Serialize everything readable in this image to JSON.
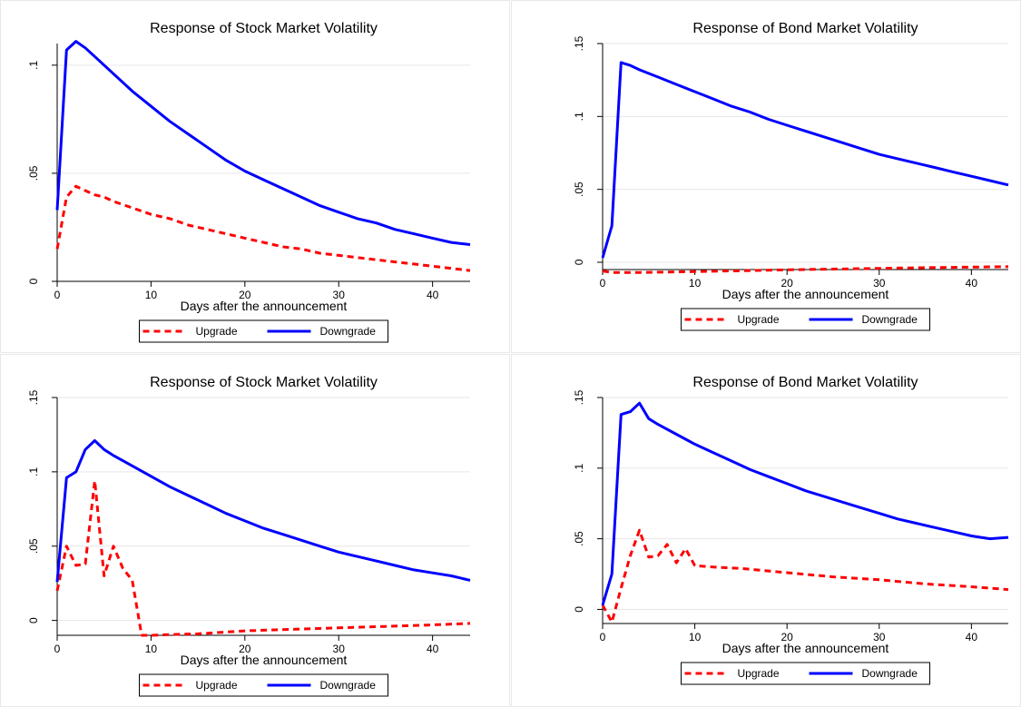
{
  "chart_data": [
    {
      "type": "line",
      "title": "Response of Stock Market Volatility",
      "xlabel": "Days after the announcement",
      "ylabel": "",
      "xlim": [
        0,
        44
      ],
      "ylim": [
        0,
        0.11
      ],
      "xticks": [
        0,
        10,
        20,
        30,
        40
      ],
      "xtick_labels": [
        "0",
        "10",
        "20",
        "30",
        "40"
      ],
      "yticks": [
        0,
        0.05,
        0.1
      ],
      "ytick_labels": [
        "0",
        ".05",
        ".1"
      ],
      "grid": true,
      "legend_position": "bottom",
      "series": [
        {
          "name": "Upgrade",
          "color": "#ff0000",
          "dash": "dashed",
          "x": [
            0,
            1,
            2,
            3,
            4,
            5,
            6,
            8,
            10,
            12,
            14,
            16,
            18,
            20,
            22,
            24,
            26,
            28,
            30,
            32,
            34,
            36,
            38,
            40,
            42,
            44
          ],
          "y": [
            0.015,
            0.039,
            0.044,
            0.042,
            0.04,
            0.039,
            0.037,
            0.034,
            0.031,
            0.029,
            0.026,
            0.024,
            0.022,
            0.02,
            0.018,
            0.016,
            0.015,
            0.013,
            0.012,
            0.011,
            0.01,
            0.009,
            0.008,
            0.007,
            0.006,
            0.005
          ]
        },
        {
          "name": "Downgrade",
          "color": "#0000ff",
          "dash": "solid",
          "x": [
            0,
            1,
            2,
            3,
            4,
            5,
            6,
            8,
            10,
            12,
            14,
            16,
            18,
            20,
            22,
            24,
            26,
            28,
            30,
            32,
            34,
            36,
            38,
            40,
            42,
            44
          ],
          "y": [
            0.033,
            0.107,
            0.111,
            0.108,
            0.104,
            0.1,
            0.096,
            0.088,
            0.081,
            0.074,
            0.068,
            0.062,
            0.056,
            0.051,
            0.047,
            0.043,
            0.039,
            0.035,
            0.032,
            0.029,
            0.027,
            0.024,
            0.022,
            0.02,
            0.018,
            0.017
          ]
        }
      ]
    },
    {
      "type": "line",
      "title": "Response of Bond Market Volatility",
      "xlabel": "Days after the announcement",
      "ylabel": "",
      "xlim": [
        0,
        44
      ],
      "ylim": [
        -0.005,
        0.15
      ],
      "xticks": [
        0,
        10,
        20,
        30,
        40
      ],
      "xtick_labels": [
        "0",
        "10",
        "20",
        "30",
        "40"
      ],
      "yticks": [
        0,
        0.05,
        0.1,
        0.15
      ],
      "ytick_labels": [
        "0",
        ".05",
        ".1",
        ".15"
      ],
      "grid": true,
      "legend_position": "bottom",
      "series": [
        {
          "name": "Upgrade",
          "color": "#ff0000",
          "dash": "dashed",
          "x": [
            0,
            1,
            2,
            3,
            4,
            6,
            8,
            10,
            15,
            20,
            25,
            30,
            35,
            40,
            44
          ],
          "y": [
            -0.006,
            -0.007,
            -0.007,
            -0.007,
            -0.007,
            -0.0068,
            -0.0066,
            -0.0064,
            -0.0058,
            -0.0052,
            -0.0047,
            -0.0042,
            -0.0037,
            -0.0033,
            -0.003
          ]
        },
        {
          "name": "Downgrade",
          "color": "#0000ff",
          "dash": "solid",
          "x": [
            0,
            1,
            2,
            3,
            4,
            6,
            8,
            10,
            12,
            14,
            16,
            18,
            20,
            22,
            24,
            26,
            28,
            30,
            32,
            34,
            36,
            38,
            40,
            42,
            44
          ],
          "y": [
            0.003,
            0.025,
            0.137,
            0.135,
            0.132,
            0.127,
            0.122,
            0.117,
            0.112,
            0.107,
            0.103,
            0.098,
            0.094,
            0.09,
            0.086,
            0.082,
            0.078,
            0.074,
            0.071,
            0.068,
            0.065,
            0.062,
            0.059,
            0.056,
            0.053
          ]
        }
      ]
    },
    {
      "type": "line",
      "title": "Response of Stock Market Volatility",
      "xlabel": "Days after the announcement",
      "ylabel": "",
      "xlim": [
        0,
        44
      ],
      "ylim": [
        -0.01,
        0.15
      ],
      "xticks": [
        0,
        10,
        20,
        30,
        40
      ],
      "xtick_labels": [
        "0",
        "10",
        "20",
        "30",
        "40"
      ],
      "yticks": [
        0,
        0.05,
        0.1,
        0.15
      ],
      "ytick_labels": [
        "0",
        ".05",
        ".1",
        ".15"
      ],
      "grid": true,
      "legend_position": "bottom",
      "series": [
        {
          "name": "Upgrade",
          "color": "#ff0000",
          "dash": "dashed",
          "x": [
            0,
            1,
            2,
            3,
            4,
            5,
            6,
            7,
            8,
            9,
            10,
            12,
            15,
            20,
            25,
            30,
            35,
            40,
            44
          ],
          "y": [
            0.02,
            0.05,
            0.037,
            0.038,
            0.094,
            0.03,
            0.05,
            0.035,
            0.027,
            -0.01,
            -0.01,
            -0.0095,
            -0.009,
            -0.007,
            -0.006,
            -0.005,
            -0.004,
            -0.003,
            -0.002
          ]
        },
        {
          "name": "Downgrade",
          "color": "#0000ff",
          "dash": "solid",
          "x": [
            0,
            1,
            2,
            3,
            4,
            5,
            6,
            8,
            10,
            12,
            14,
            16,
            18,
            20,
            22,
            24,
            26,
            28,
            30,
            32,
            34,
            36,
            38,
            40,
            42,
            44
          ],
          "y": [
            0.026,
            0.096,
            0.1,
            0.115,
            0.121,
            0.115,
            0.111,
            0.104,
            0.097,
            0.09,
            0.084,
            0.078,
            0.072,
            0.067,
            0.062,
            0.058,
            0.054,
            0.05,
            0.046,
            0.043,
            0.04,
            0.037,
            0.034,
            0.032,
            0.03,
            0.027
          ]
        }
      ]
    },
    {
      "type": "line",
      "title": "Response of Bond Market Volatility",
      "xlabel": "Days after the announcement",
      "ylabel": "",
      "xlim": [
        0,
        44
      ],
      "ylim": [
        -0.01,
        0.15
      ],
      "xticks": [
        0,
        10,
        20,
        30,
        40
      ],
      "xtick_labels": [
        "0",
        "10",
        "20",
        "30",
        "40"
      ],
      "yticks": [
        0,
        0.05,
        0.1,
        0.15
      ],
      "ytick_labels": [
        "0",
        ".05",
        ".1",
        ".15"
      ],
      "grid": true,
      "legend_position": "bottom",
      "series": [
        {
          "name": "Upgrade",
          "color": "#ff0000",
          "dash": "dashed",
          "x": [
            0,
            1,
            2,
            3,
            4,
            5,
            6,
            7,
            8,
            9,
            10,
            12,
            15,
            20,
            25,
            30,
            35,
            40,
            44
          ],
          "y": [
            0.003,
            -0.009,
            0.015,
            0.038,
            0.056,
            0.037,
            0.038,
            0.046,
            0.033,
            0.043,
            0.031,
            0.03,
            0.029,
            0.026,
            0.023,
            0.021,
            0.018,
            0.016,
            0.014
          ]
        },
        {
          "name": "Downgrade",
          "color": "#0000ff",
          "dash": "solid",
          "x": [
            0,
            1,
            2,
            3,
            4,
            5,
            6,
            8,
            10,
            12,
            14,
            16,
            18,
            20,
            22,
            24,
            26,
            28,
            30,
            32,
            34,
            36,
            38,
            40,
            42,
            44
          ],
          "y": [
            0.003,
            0.025,
            0.138,
            0.14,
            0.146,
            0.135,
            0.131,
            0.124,
            0.117,
            0.111,
            0.105,
            0.099,
            0.094,
            0.089,
            0.084,
            0.08,
            0.076,
            0.072,
            0.068,
            0.064,
            0.061,
            0.058,
            0.055,
            0.052,
            0.05,
            0.051
          ]
        }
      ]
    }
  ]
}
